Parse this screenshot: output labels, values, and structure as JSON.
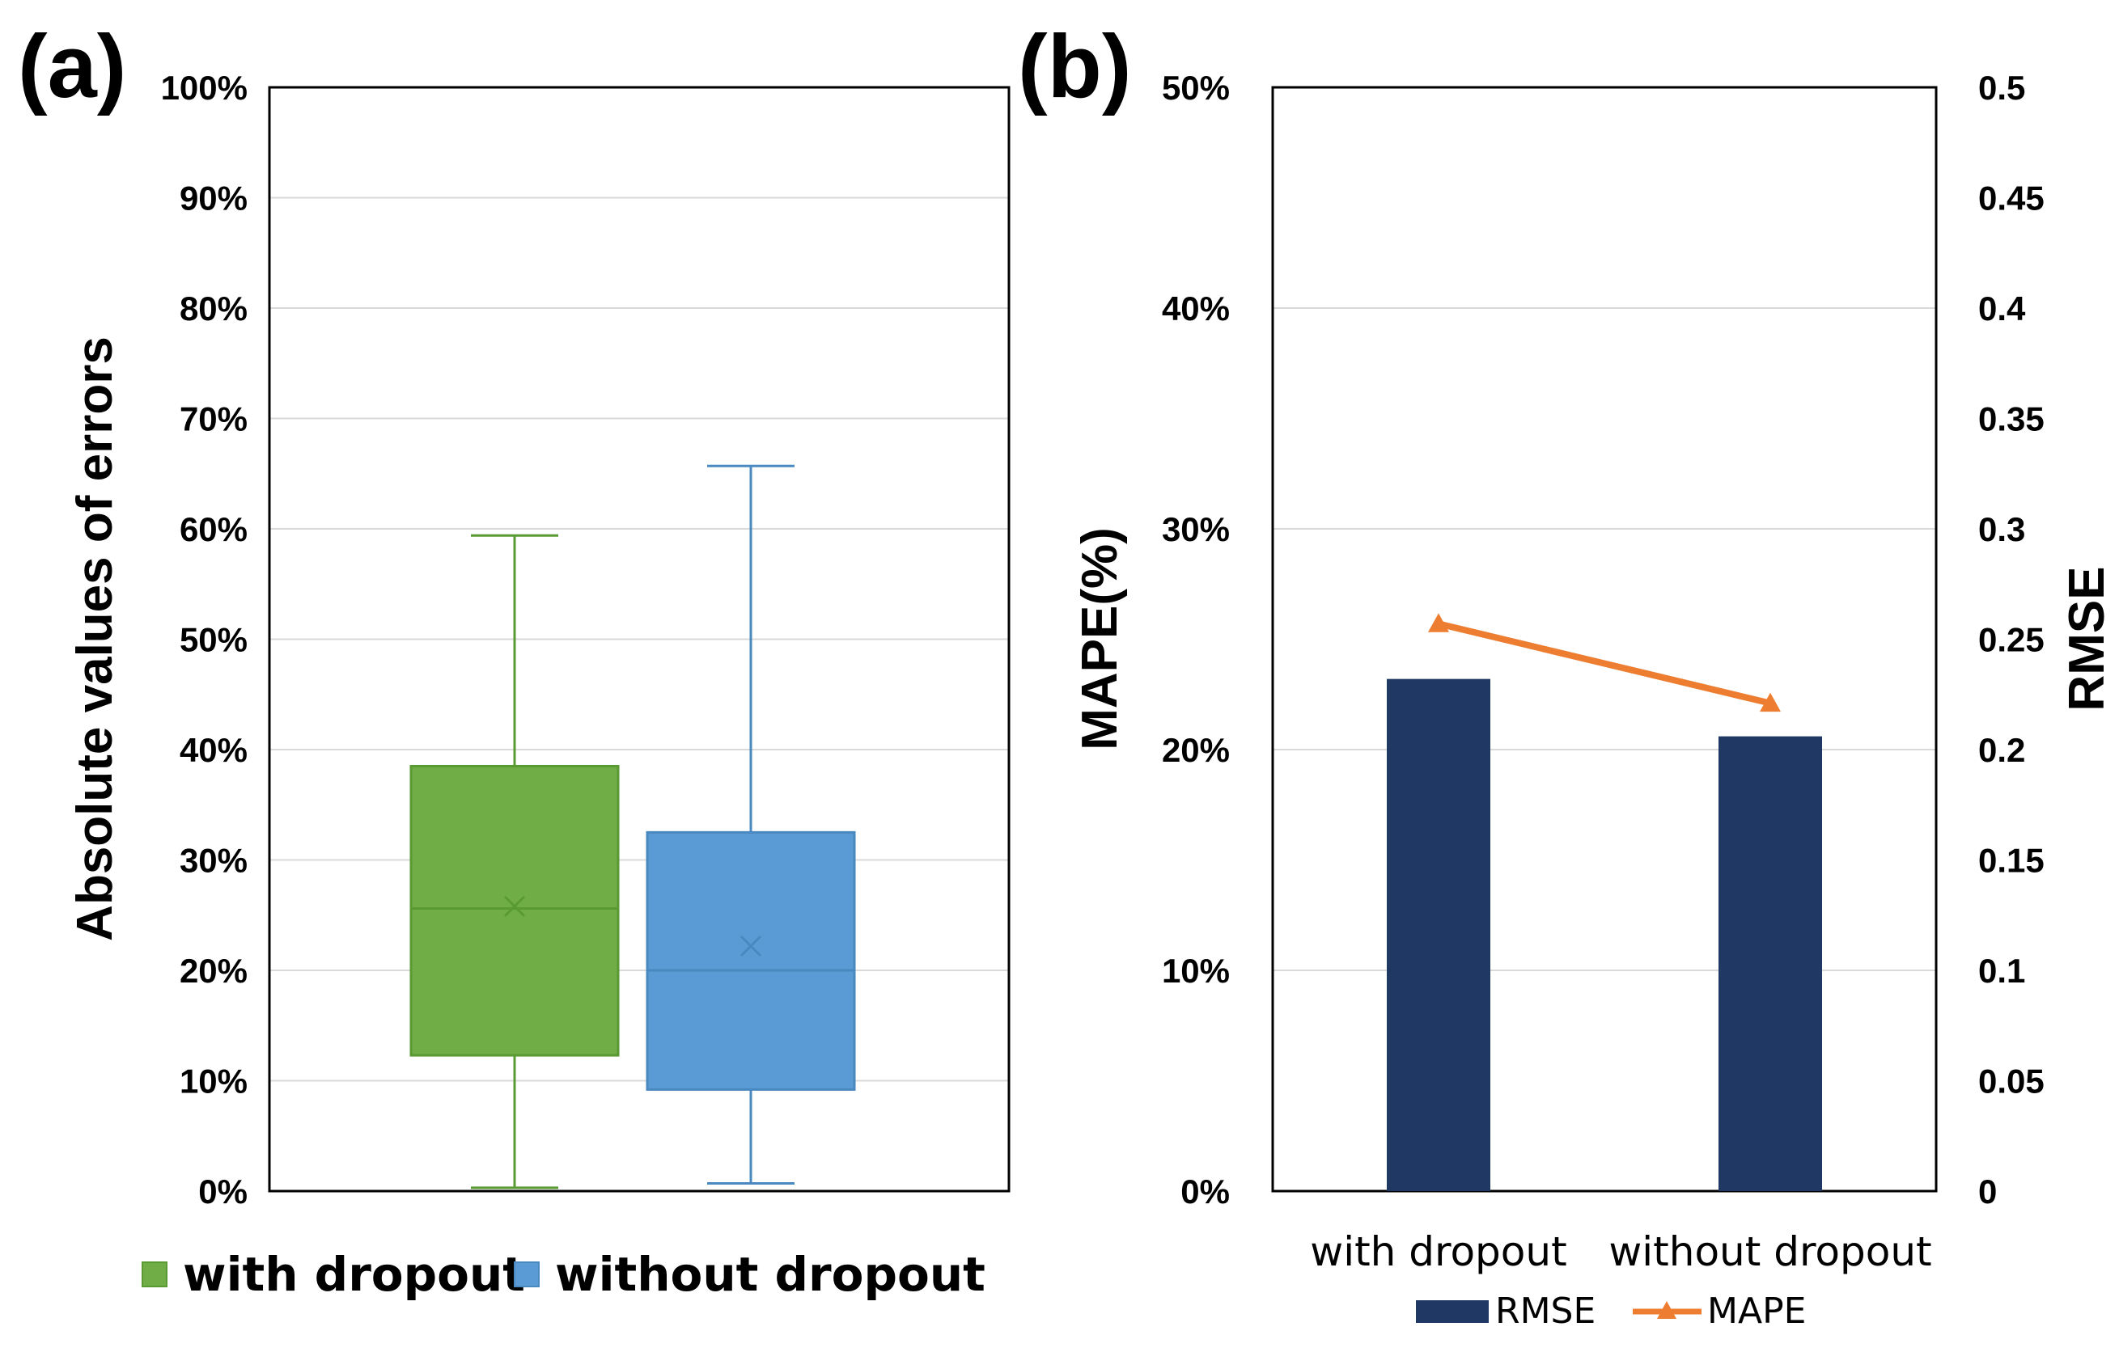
{
  "figure": {
    "panel_a_label": "(a)",
    "panel_b_label": "(b)"
  },
  "chart_data": [
    {
      "type": "box",
      "panel": "(a)",
      "ylabel": "Absolute values of errors",
      "ylim": [
        0,
        100
      ],
      "y_ticks": [
        "0%",
        "10%",
        "20%",
        "30%",
        "40%",
        "50%",
        "60%",
        "70%",
        "80%",
        "90%",
        "100%"
      ],
      "grid": true,
      "legend_position": "bottom",
      "series": [
        {
          "name": "with dropout",
          "color": "#70AD47",
          "edge_color": "#5A9A33",
          "min": 0.3,
          "q1": 12.3,
          "median": 25.6,
          "q3": 38.5,
          "max": 59.4,
          "mean": 25.8
        },
        {
          "name": "without dropout",
          "color": "#5B9BD5",
          "edge_color": "#4A88C0",
          "min": 0.7,
          "q1": 9.2,
          "median": 20.0,
          "q3": 32.5,
          "max": 65.7,
          "mean": 22.2
        }
      ]
    },
    {
      "type": "bar+line",
      "panel": "(b)",
      "categories": [
        "with dropout",
        "without dropout"
      ],
      "left_axis": {
        "label": "MAPE(%)",
        "ylim": [
          0,
          50
        ],
        "ticks": [
          "0%",
          "10%",
          "20%",
          "30%",
          "40%",
          "50%"
        ]
      },
      "right_axis": {
        "label": "RMSE",
        "ylim": [
          0,
          0.5
        ],
        "ticks": [
          "0",
          "0.05",
          "0.1",
          "0.15",
          "0.2",
          "0.25",
          "0.3",
          "0.35",
          "0.4",
          "0.45",
          "0.5"
        ]
      },
      "grid": true,
      "legend_position": "bottom",
      "series": [
        {
          "name": "RMSE",
          "type": "bar",
          "axis": "right",
          "color": "#203864",
          "values": [
            0.232,
            0.206
          ]
        },
        {
          "name": "MAPE",
          "type": "line",
          "axis": "left",
          "color": "#ED7D31",
          "marker": "triangle",
          "values": [
            25.7,
            22.1
          ]
        }
      ]
    }
  ]
}
